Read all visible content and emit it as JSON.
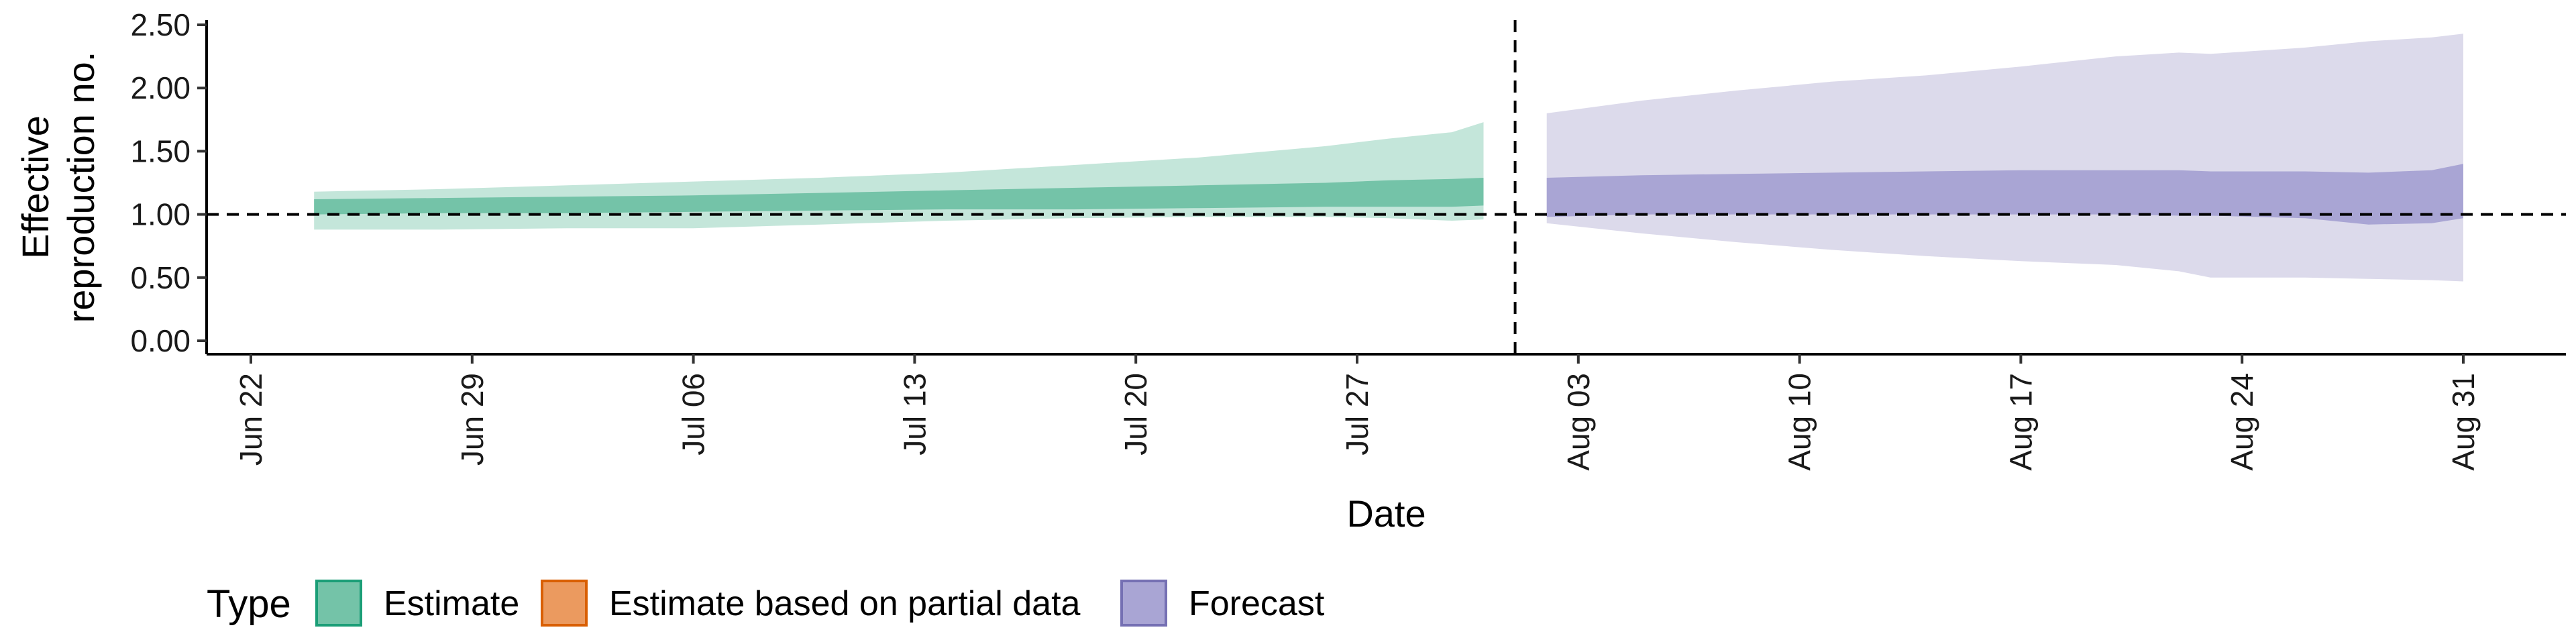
{
  "chart_data": {
    "type": "area",
    "xlabel": "Date",
    "ylabel_lines": [
      "Effective",
      "reproduction no."
    ],
    "ylim": [
      0,
      2.5
    ],
    "y_ticks": [
      "0.00",
      "0.50",
      "1.00",
      "1.50",
      "2.00",
      "2.50"
    ],
    "y_tick_values": [
      0,
      0.5,
      1.0,
      1.5,
      2.0,
      2.5
    ],
    "x_ticks": [
      "Jun 22",
      "Jun 29",
      "Jul 06",
      "Jul 13",
      "Jul 20",
      "Jul 27",
      "Aug 03",
      "Aug 10",
      "Aug 17",
      "Aug 24",
      "Aug 31"
    ],
    "x_tick_dates": [
      "2020-06-22",
      "2020-06-29",
      "2020-07-06",
      "2020-07-13",
      "2020-07-20",
      "2020-07-27",
      "2020-08-03",
      "2020-08-10",
      "2020-08-17",
      "2020-08-24",
      "2020-08-31"
    ],
    "xlim": [
      "2020-06-22",
      "2020-09-01"
    ],
    "reference_line_y": 1.0,
    "vertical_line_x": "2020-08-01",
    "grid": false,
    "legend": {
      "title": "Type",
      "position": "bottom-left",
      "items": [
        {
          "label": "Estimate",
          "fill": "#74c3a8",
          "stroke": "#1b9e77"
        },
        {
          "label": "Estimate based on partial data",
          "fill": "#eb9a5f",
          "stroke": "#d95f02"
        },
        {
          "label": "Forecast",
          "fill": "#a9a5d4",
          "stroke": "#7570b3"
        }
      ]
    },
    "series": [
      {
        "name": "Estimate",
        "x": [
          "2020-06-24",
          "2020-06-28",
          "2020-07-02",
          "2020-07-06",
          "2020-07-10",
          "2020-07-14",
          "2020-07-18",
          "2020-07-22",
          "2020-07-26",
          "2020-07-28",
          "2020-07-30",
          "2020-07-31"
        ],
        "outer_lower": [
          0.88,
          0.88,
          0.89,
          0.89,
          0.92,
          0.95,
          0.97,
          0.98,
          0.98,
          0.97,
          0.95,
          0.96
        ],
        "outer_upper": [
          1.18,
          1.2,
          1.23,
          1.26,
          1.29,
          1.33,
          1.39,
          1.45,
          1.54,
          1.6,
          1.65,
          1.73
        ],
        "inner_lower": [
          1.0,
          1.01,
          1.01,
          1.02,
          1.03,
          1.04,
          1.04,
          1.05,
          1.06,
          1.06,
          1.06,
          1.07
        ],
        "inner_upper": [
          1.12,
          1.13,
          1.14,
          1.15,
          1.17,
          1.19,
          1.21,
          1.23,
          1.25,
          1.27,
          1.28,
          1.29
        ],
        "outer_fill": "#c4e6da",
        "inner_fill": "#74c3a8"
      },
      {
        "name": "Forecast",
        "x": [
          "2020-08-02",
          "2020-08-05",
          "2020-08-08",
          "2020-08-11",
          "2020-08-14",
          "2020-08-17",
          "2020-08-20",
          "2020-08-22",
          "2020-08-23",
          "2020-08-26",
          "2020-08-28",
          "2020-08-30",
          "2020-08-31"
        ],
        "outer_lower": [
          0.93,
          0.85,
          0.78,
          0.72,
          0.67,
          0.63,
          0.6,
          0.55,
          0.5,
          0.5,
          0.49,
          0.48,
          0.47
        ],
        "outer_upper": [
          1.8,
          1.9,
          1.98,
          2.05,
          2.1,
          2.17,
          2.25,
          2.28,
          2.27,
          2.32,
          2.37,
          2.4,
          2.43
        ],
        "inner_lower": [
          0.98,
          1.0,
          1.0,
          1.0,
          1.0,
          1.0,
          1.0,
          0.99,
          0.99,
          0.97,
          0.92,
          0.93,
          0.97
        ],
        "inner_upper": [
          1.29,
          1.31,
          1.32,
          1.33,
          1.34,
          1.35,
          1.35,
          1.35,
          1.34,
          1.34,
          1.33,
          1.35,
          1.4
        ],
        "outer_fill": "#dcdaeb",
        "inner_fill": "#a9a5d4"
      }
    ]
  }
}
